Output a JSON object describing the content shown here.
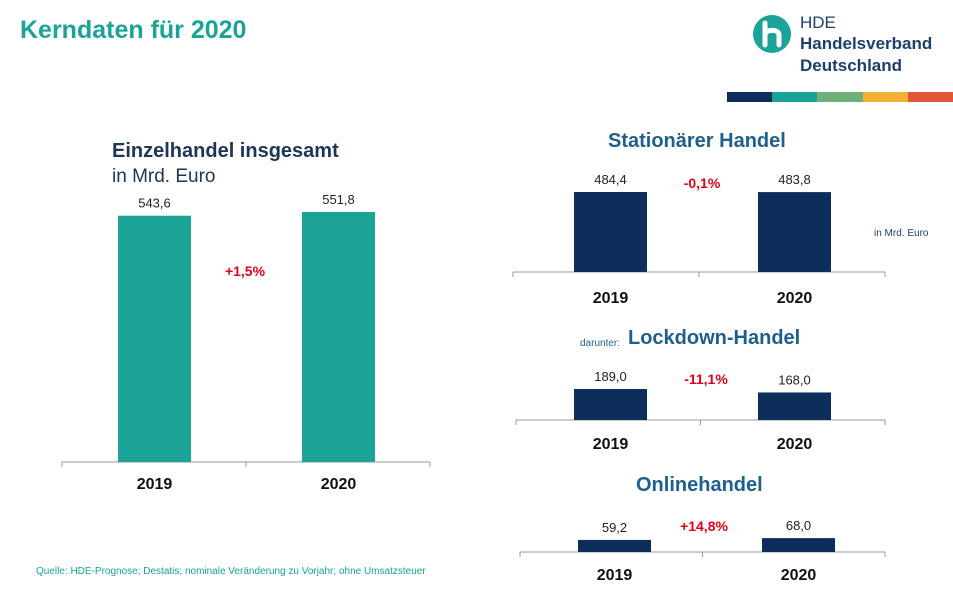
{
  "page": {
    "title": "Kerndaten für 2020",
    "logo": {
      "line1": "HDE",
      "line2": "Handelsverband",
      "line3": "Deutschland"
    },
    "unit_note": "in Mrd. Euro",
    "source": "Quelle: HDE-Prognose; Destatis; nominale Veränderung zu Vorjahr; ohne Umsatzsteuer",
    "lockdown_prefix": "darunter:"
  },
  "colors": {
    "teal": "#1aa396",
    "navy": "#0d2d5a",
    "change": "#e0001b",
    "stripe": [
      "#0d2d5a",
      "#1aa396",
      "#6fb07a",
      "#f2b134",
      "#e2573a"
    ]
  },
  "chart_data": [
    {
      "type": "bar",
      "title": "Einzelhandel insgesamt",
      "subtitle": "in Mrd. Euro",
      "categories": [
        "2019",
        "2020"
      ],
      "values": [
        543.6,
        551.8
      ],
      "value_labels": [
        "543,6",
        "551,8"
      ],
      "change_label": "+1,5%",
      "ylim": [
        0,
        551.8
      ],
      "color": "#1aa396"
    },
    {
      "type": "bar",
      "title": "Stationärer Handel",
      "categories": [
        "2019",
        "2020"
      ],
      "values": [
        484.4,
        483.8
      ],
      "value_labels": [
        "484,4",
        "483,8"
      ],
      "change_label": "-0,1%",
      "ylim": [
        0,
        484.4
      ],
      "color": "#0d2d5a"
    },
    {
      "type": "bar",
      "title": "Lockdown-Handel",
      "categories": [
        "2019",
        "2020"
      ],
      "values": [
        189.0,
        168.0
      ],
      "value_labels": [
        "189,0",
        "168,0"
      ],
      "change_label": "-11,1%",
      "ylim": [
        0,
        610
      ],
      "color": "#0d2d5a"
    },
    {
      "type": "bar",
      "title": "Onlinehandel",
      "categories": [
        "2019",
        "2020"
      ],
      "values": [
        59.2,
        68.0
      ],
      "value_labels": [
        "59,2",
        "68,0"
      ],
      "change_label": "+14,8%",
      "ylim": [
        0,
        490
      ],
      "color": "#0d2d5a"
    }
  ]
}
